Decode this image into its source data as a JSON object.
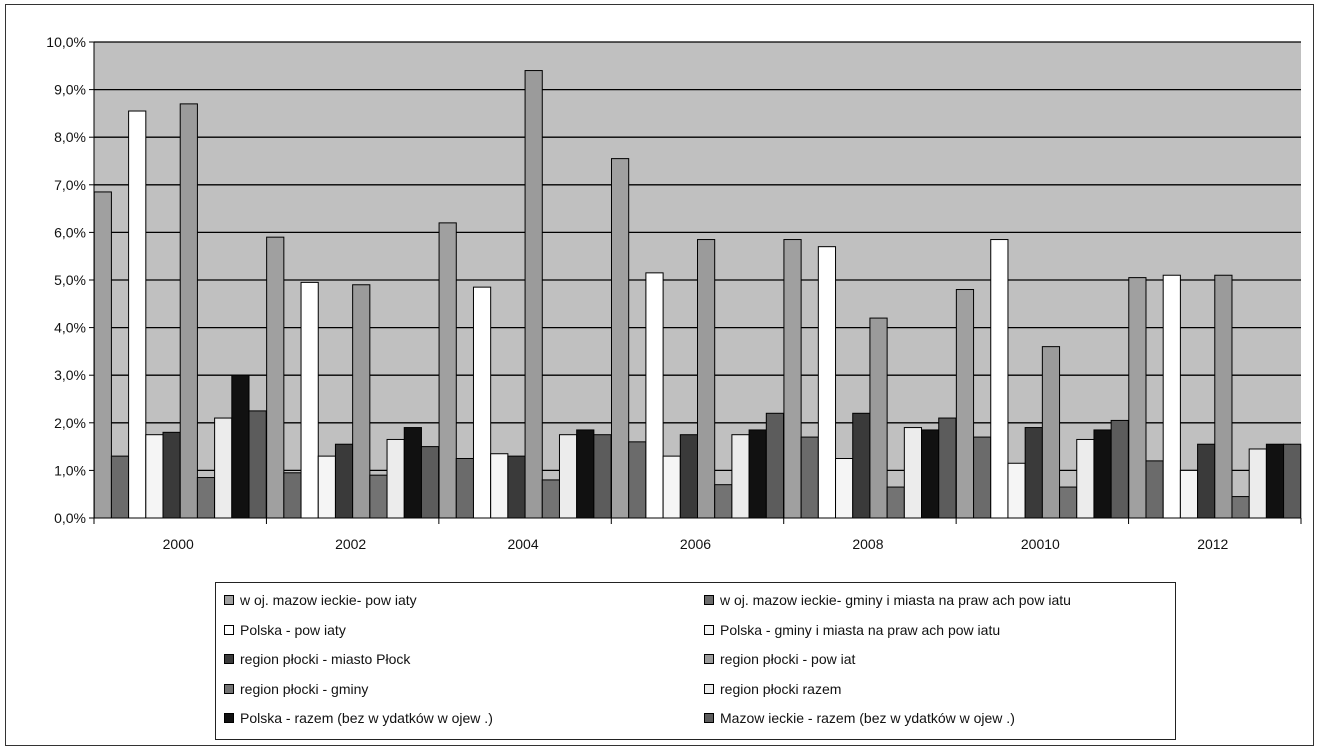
{
  "chart_data": {
    "type": "bar",
    "categories": [
      "2000",
      "2002",
      "2004",
      "2006",
      "2008",
      "20010",
      "2012"
    ],
    "ylim": [
      0,
      10
    ],
    "y_ticks": [
      "0,0%",
      "1,0%",
      "2,0%",
      "3,0%",
      "4,0%",
      "5,0%",
      "6,0%",
      "7,0%",
      "8,0%",
      "9,0%",
      "10,0%"
    ],
    "grid": true,
    "plot_background": "#c0c0c0",
    "legend_position": "bottom",
    "series": [
      {
        "name": "w oj. mazow ieckie- pow iaty",
        "color": "#a0a0a0",
        "values": [
          6.85,
          5.9,
          6.2,
          7.55,
          5.85,
          4.8,
          5.05
        ]
      },
      {
        "name": "w oj. mazow ieckie- gminy i miasta na praw ach pow iatu",
        "color": "#6b6b6b",
        "values": [
          1.3,
          0.95,
          1.25,
          1.6,
          1.7,
          1.7,
          1.2
        ]
      },
      {
        "name": "Polska - pow iaty",
        "color": "#ffffff",
        "values": [
          8.55,
          4.95,
          4.85,
          5.15,
          5.7,
          5.85,
          5.1
        ]
      },
      {
        "name": "Polska - gminy i miasta na praw ach pow iatu",
        "color": "#f5f5f5",
        "values": [
          1.75,
          1.3,
          1.35,
          1.3,
          1.25,
          1.15,
          1.0
        ]
      },
      {
        "name": "region płocki - miasto Płock",
        "color": "#3a3a3a",
        "values": [
          1.8,
          1.55,
          1.3,
          1.75,
          2.2,
          1.9,
          1.55
        ]
      },
      {
        "name": "region płocki - pow iat",
        "color": "#9b9b9b",
        "values": [
          8.7,
          4.9,
          9.4,
          5.85,
          4.2,
          3.6,
          5.1
        ]
      },
      {
        "name": "region płocki - gminy",
        "color": "#737373",
        "values": [
          0.85,
          0.9,
          0.8,
          0.7,
          0.65,
          0.65,
          0.45
        ]
      },
      {
        "name": "region płocki razem",
        "color": "#ececec",
        "values": [
          2.1,
          1.65,
          1.75,
          1.75,
          1.9,
          1.65,
          1.45
        ]
      },
      {
        "name": "Polska - razem (bez w ydatków w ojew .)",
        "color": "#111111",
        "values": [
          3.0,
          1.9,
          1.85,
          1.85,
          1.85,
          1.85,
          1.55
        ]
      },
      {
        "name": "Mazow ieckie - razem (bez w ydatków w ojew .)",
        "color": "#5c5c5c",
        "values": [
          2.25,
          1.5,
          1.75,
          2.2,
          2.1,
          2.05,
          1.55
        ]
      }
    ]
  }
}
